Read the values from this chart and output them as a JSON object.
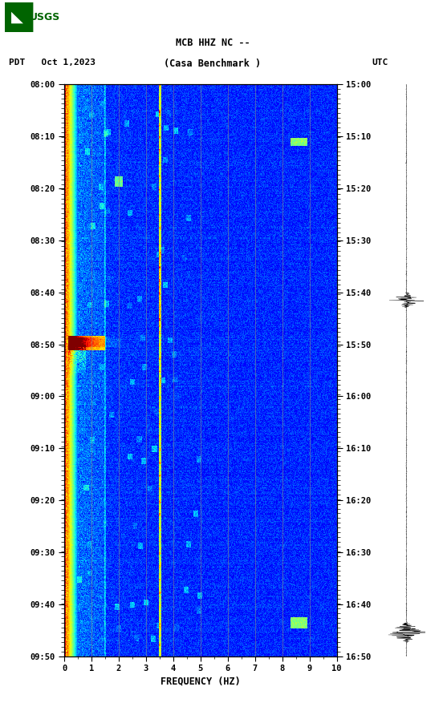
{
  "title_line1": "MCB HHZ NC --",
  "title_line2": "(Casa Benchmark )",
  "left_label": "PDT   Oct 1,2023",
  "right_label": "UTC",
  "ylabel_left_ticks": [
    "08:00",
    "08:10",
    "08:20",
    "08:30",
    "08:40",
    "08:50",
    "09:00",
    "09:10",
    "09:20",
    "09:30",
    "09:40",
    "09:50"
  ],
  "ylabel_right_ticks": [
    "15:00",
    "15:10",
    "15:20",
    "15:30",
    "15:40",
    "15:50",
    "16:00",
    "16:10",
    "16:20",
    "16:30",
    "16:40",
    "16:50"
  ],
  "xlabel": "FREQUENCY (HZ)",
  "xmin": 0,
  "xmax": 10,
  "freq_ticks": [
    0,
    1,
    2,
    3,
    4,
    5,
    6,
    7,
    8,
    9,
    10
  ],
  "grid_freqs": [
    1,
    2,
    3,
    4,
    5,
    6,
    7,
    8,
    9
  ],
  "n_time_steps": 660,
  "n_freq_steps": 500,
  "fig_bg": "#ffffff",
  "colormap": "jet",
  "fig_width": 5.52,
  "fig_height": 8.92
}
